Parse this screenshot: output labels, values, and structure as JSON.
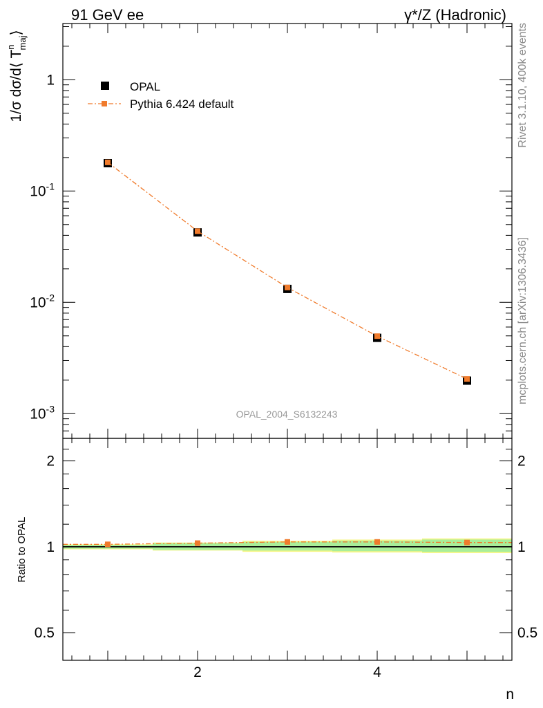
{
  "header": {
    "left": "91 GeV ee",
    "right": "γ*/Z (Hadronic)"
  },
  "side_labels": {
    "rivet": "Rivet 3.1.10,  400k events",
    "source": "mcplots.cern.ch [arXiv:1306.3436]"
  },
  "watermark": "OPAL_2004_S6132243",
  "legend": [
    {
      "name": "OPAL",
      "marker": "square",
      "color": "#000000"
    },
    {
      "name": "Pythia 6.424 default",
      "marker": "square-dashdot",
      "color": "#f07b2c"
    }
  ],
  "main_y_label": {
    "base": "1/σ dσ/d⟨ T",
    "sup": "n",
    "sub": "maj",
    "close": "⟩"
  },
  "main_y_ticks": [
    "10",
    "10",
    "1",
    "10"
  ],
  "main_y_tick_exps": [
    "-3",
    "-2",
    "",
    "-1"
  ],
  "ratio_y_label": "Ratio to OPAL",
  "ratio_y_ticks": [
    "0.5",
    "1",
    "2"
  ],
  "x_label": "n",
  "x_ticks": [
    "2",
    "4"
  ],
  "chart_data": [
    {
      "type": "scatter",
      "x_label": "n",
      "y_label": "1/σ dσ/d⟨T_maj^n⟩",
      "y_scale": "log",
      "xlim": [
        0.5,
        5.5
      ],
      "ylim": [
        0.0006,
        3.2
      ],
      "grid": false,
      "legend_position": "top-left",
      "series": [
        {
          "name": "OPAL",
          "x": [
            1,
            2,
            3,
            4,
            5
          ],
          "y": [
            0.178,
            0.0425,
            0.0132,
            0.0048,
            0.00198
          ]
        },
        {
          "name": "Pythia 6.424 default",
          "x": [
            1,
            2,
            3,
            4,
            5
          ],
          "y": [
            0.181,
            0.0436,
            0.0136,
            0.00497,
            0.00205
          ]
        }
      ]
    },
    {
      "type": "line",
      "x_label": "n",
      "y_label": "Ratio to OPAL",
      "y_scale": "log",
      "xlim": [
        0.5,
        5.5
      ],
      "ylim": [
        0.4,
        2.4
      ],
      "grid": false,
      "series": [
        {
          "name": "Pythia 6.424 default",
          "x": [
            1,
            2,
            3,
            4,
            5
          ],
          "y": [
            1.02,
            1.03,
            1.04,
            1.04,
            1.035
          ]
        }
      ],
      "uncertainty_band": {
        "x": [
          1,
          2,
          3,
          4,
          5
        ],
        "inner_low": [
          0.985,
          0.975,
          0.97,
          0.965,
          0.96
        ],
        "inner_high": [
          1.015,
          1.03,
          1.04,
          1.05,
          1.06
        ],
        "outer_low": [
          0.98,
          0.97,
          0.96,
          0.955,
          0.95
        ],
        "outer_high": [
          1.02,
          1.035,
          1.05,
          1.06,
          1.07
        ]
      }
    }
  ]
}
